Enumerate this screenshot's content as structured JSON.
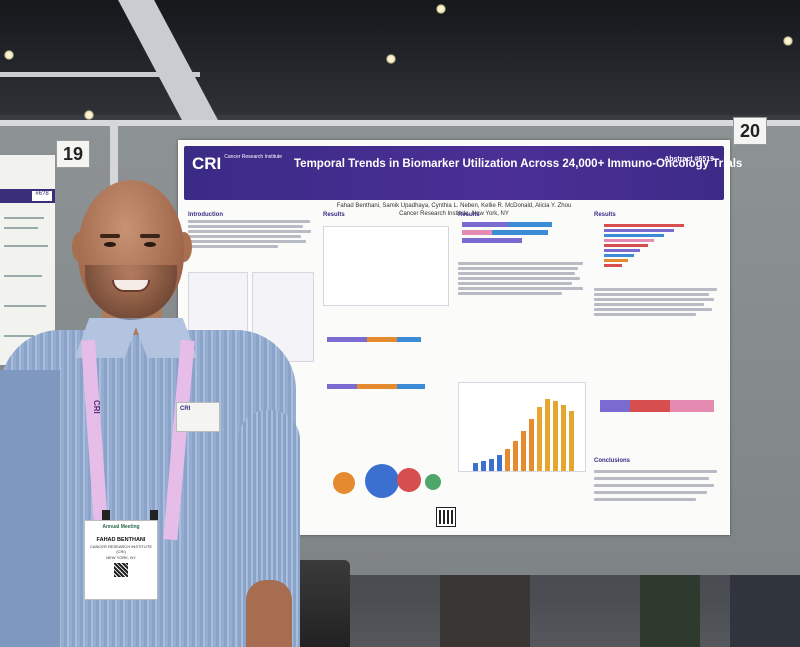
{
  "board_numbers": {
    "left": "19",
    "right": "20"
  },
  "left_poster": {
    "chip": "#6?8"
  },
  "poster": {
    "logo": "CRI",
    "logo_sub": "Cancer Research Institute",
    "title": "Temporal Trends in Biomarker Utilization Across 24,000+ Immuno-Oncology Trials",
    "abstract": "Abstract #6519",
    "authors": "Fahad Benthani, Samik Upadhaya, Cynthia L. Neben, Kellie R. McDonald, Alicia Y. Zhou",
    "affiliation": "Cancer Research Institute, New York, NY",
    "sections": {
      "intro": "Introduction",
      "results1": "Results",
      "results2": "Results",
      "results3": "Results",
      "conclusions": "Conclusions"
    }
  },
  "badge": {
    "event": "Annual Meeting",
    "name": "FAHAD BENTHANI",
    "org": "CANCER RESEARCH INSTITUTE (CRI)",
    "location": "NEW YORK, NY"
  },
  "pocket_card": "CRI",
  "lanyard_text": "CRI"
}
